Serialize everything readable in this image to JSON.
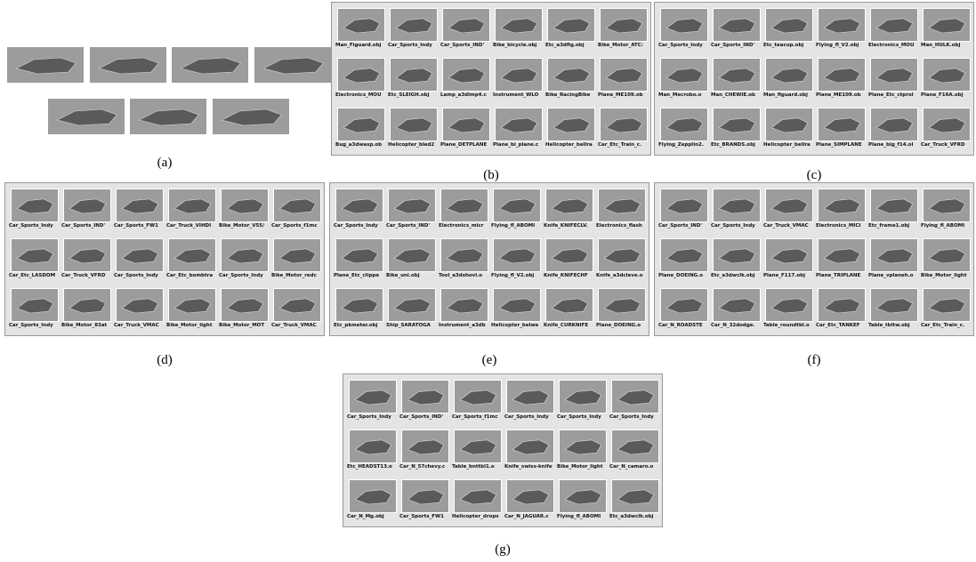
{
  "panels": [
    {
      "caption": "(a)",
      "labels": []
    },
    {
      "caption": "(b)",
      "labels": [
        "Man_Figuard.obj",
        "Car_Sports_Indy",
        "Car_Sports_IND'",
        "Bike_bicycle.obj",
        "Etc_a3dfig.obj",
        "Bike_Motor_ATC:",
        "Electronics_MOU",
        "Etc_SLEIGH.obj",
        "Lamp_a3dlmp4.c",
        "Instrument_WLO",
        "Bike_RacingBike",
        "Plane_ME109.ob",
        "Bug_a3dwasp.ob",
        "Helicopter_bled2",
        "Plane_DETPLANE",
        "Plane_bi_plane.c",
        "Helicopter_bellra",
        "Car_Etc_Train_c."
      ]
    },
    {
      "caption": "(c)",
      "labels": [
        "Car_Sports_Indy",
        "Car_Sports_IND'",
        "Etc_teacup.obj",
        "Flying_fl_V2.obj",
        "Electronics_MOU",
        "Man_HULK.obj",
        "Man_Mecrobo.o",
        "Man_CHEWIE.ob",
        "Man_figuard.obj",
        "Plane_ME109.ob",
        "Plane_Etc_ctprol",
        "Plane_F16A.obj",
        "Flying_Zepplin2.",
        "Etc_BRANDS.obj",
        "Helicopter_bellra",
        "Plane_SIMPLANE",
        "Plane_big_f14.ol",
        "Car_Truck_VFRD"
      ]
    },
    {
      "caption": "(d)",
      "labels": [
        "Car_Sports_Indy",
        "Car_Sports_IND'",
        "Car_Sports_FW1",
        "Car_Truck_VIHDI",
        "Bike_Motor_V55/",
        "Car_Sports_f1mc",
        "Car_Etc_LASDOM",
        "Car_Truck_VFRD",
        "Car_Sports_Indy",
        "Car_Etc_bombtra",
        "Car_Sports_Indy",
        "Bike_Motor_redc",
        "Car_Sports_Indy",
        "Bike_Motor_83at",
        "Car_Truck_VMAC",
        "Bike_Motor_light",
        "Bike_Motor_MOT",
        "Car_Truck_VMAC"
      ]
    },
    {
      "caption": "(e)",
      "labels": [
        "Car_Sports_Indy",
        "Car_Sports_IND'",
        "Electronics_micr",
        "Flying_fl_ABOMI",
        "Knife_KNIFECLV.",
        "Electronics_flash",
        "Plane_Etc_clippe",
        "Bike_uni.obj",
        "Tool_a3dshovl.o",
        "Flying_fl_V2.obj",
        "Knife_KNIFECHF",
        "Knife_a3dcleve.o",
        "Etc_pkmeter.obj",
        "Ship_SARATOGA",
        "Instrument_a3db",
        "Helicopter_belwe",
        "Knife_CURKNIFE",
        "Plane_DOEING.o"
      ]
    },
    {
      "caption": "(f)",
      "labels": [
        "Car_Sports_IND'",
        "Car_Sports_Indy",
        "Car_Truck_VMAC",
        "Electronics_MICI",
        "Etc_frame1.obj",
        "Flying_fl_ABOMI",
        "Plane_DOEING.o",
        "Etc_a3dwclk.obj",
        "Plane_F117.obj",
        "Plane_TRIPLANE",
        "Plane_vplaneh.o",
        "Bike_Motor_light",
        "Car_N_ROADSTE",
        "Car_N_32dodge.",
        "Table_roundtbl.o",
        "Car_Etc_TANKEF",
        "Table_tbltw.obj",
        "Car_Etc_Train_c."
      ]
    },
    {
      "caption": "(g)",
      "labels": [
        "Car_Sports_Indy",
        "Car_Sports_IND'",
        "Car_Sports_f1mc",
        "Car_Sports_Indy",
        "Car_Sports_Indy",
        "Car_Sports_Indy",
        "Etc_HEADST13.o",
        "Car_N_57chevy.c",
        "Table_bnttbl1.o",
        "Knife_swiss-knife",
        "Bike_Motor_light",
        "Car_N_camaro.o",
        "Car_N_Mg.obj",
        "Car_Sports_FW1",
        "Helicopter_drops",
        "Car_N_JAGUAR.c",
        "Flying_fl_ABOMI",
        "Etc_a3dwclk.obj"
      ]
    }
  ]
}
